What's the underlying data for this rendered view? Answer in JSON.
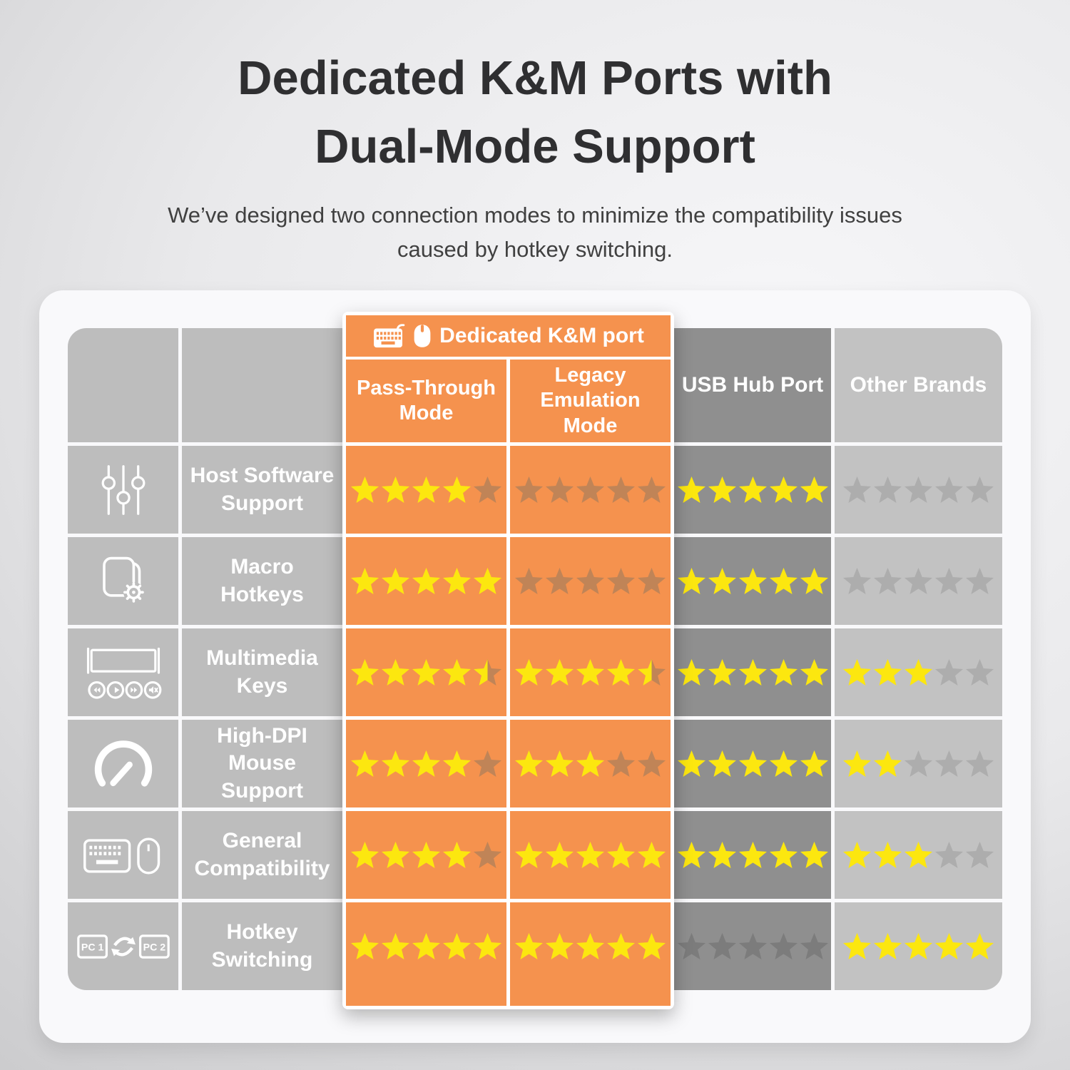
{
  "title_line1": "Dedicated K&M Ports with",
  "title_line2": "Dual-Mode Support",
  "subtitle": "We’ve designed two connection modes to minimize the compatibility issues\ncaused by hotkey switching.",
  "chart_data": {
    "type": "table",
    "title": "Dedicated K&M Ports with Dual-Mode Support",
    "group_header": "Dedicated K&M port",
    "max_stars": 5,
    "columns": [
      {
        "key": "pass_through",
        "label": "Pass-Through\nMode",
        "group": "Dedicated K&M port"
      },
      {
        "key": "legacy_emulation",
        "label": "Legacy\nEmulation\nMode",
        "group": "Dedicated K&M port"
      },
      {
        "key": "usb_hub",
        "label": "USB Hub Port"
      },
      {
        "key": "other_brands",
        "label": "Other Brands"
      }
    ],
    "rows": [
      {
        "feature": "Host Software\nSupport",
        "icon": "sliders-icon",
        "ratings": {
          "pass_through": 4,
          "legacy_emulation": 0,
          "usb_hub": 5,
          "other_brands": 0
        }
      },
      {
        "feature": "Macro\nHotkeys",
        "icon": "macro-gear-icon",
        "ratings": {
          "pass_through": 5,
          "legacy_emulation": 0,
          "usb_hub": 5,
          "other_brands": 0
        }
      },
      {
        "feature": "Multimedia\nKeys",
        "icon": "media-keys-icon",
        "ratings": {
          "pass_through": 4.5,
          "legacy_emulation": 4.5,
          "usb_hub": 5,
          "other_brands": 3
        }
      },
      {
        "feature": "High-DPI\nMouse Support",
        "icon": "speedometer-icon",
        "ratings": {
          "pass_through": 4,
          "legacy_emulation": 3,
          "usb_hub": 5,
          "other_brands": 2
        }
      },
      {
        "feature": "General\nCompatibility",
        "icon": "keyboard-mouse-icon",
        "ratings": {
          "pass_through": 4,
          "legacy_emulation": 5,
          "usb_hub": 5,
          "other_brands": 3
        }
      },
      {
        "feature": "Hotkey\nSwitching",
        "icon": "pc-switch-icon",
        "icon_labels": [
          "PC 1",
          "PC 2"
        ],
        "ratings": {
          "pass_through": 5,
          "legacy_emulation": 5,
          "usb_hub": 0,
          "other_brands": 5
        }
      }
    ]
  },
  "colors": {
    "orange": "#f5924e",
    "gray_light": "#bdbdbd",
    "gray_dark": "#8f8f8f",
    "gray_other": "#c2c2c2",
    "star_yellow": "#fce70f",
    "star_dim_on_orange": "#c08457",
    "star_dim_on_dark": "#7c7c7c",
    "star_dim_on_light": "#adadad"
  }
}
